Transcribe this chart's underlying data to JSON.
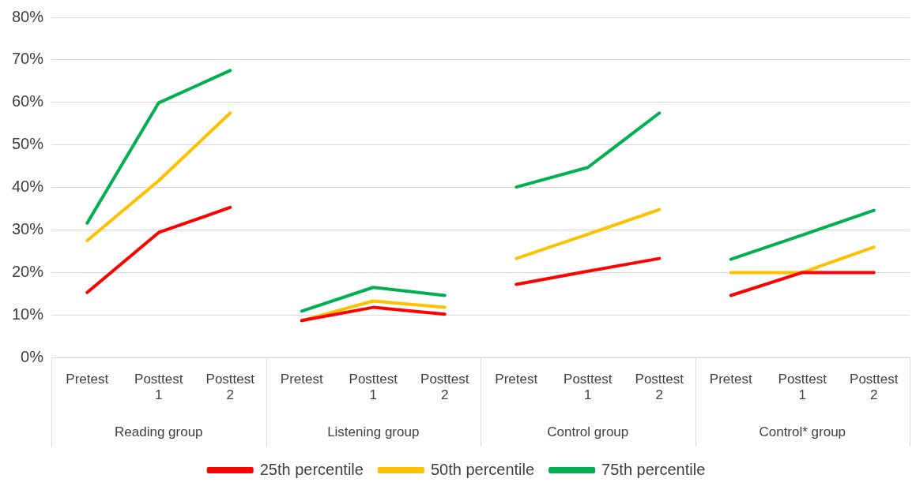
{
  "chart_data": {
    "type": "line",
    "categories": [
      "Pretest",
      "Posttest 1",
      "Posttest 2",
      "Pretest",
      "Posttest 1",
      "Posttest 2",
      "Pretest",
      "Posttest 1",
      "Posttest 2",
      "Pretest",
      "Posttest 1",
      "Posttest 2"
    ],
    "series": [
      {
        "name": "25th percentile",
        "color": "#ff0000",
        "values": [
          15.3,
          29.4,
          35.3,
          8.7,
          11.8,
          10.2,
          17.2,
          20.3,
          23.3,
          14.6,
          20,
          20
        ]
      },
      {
        "name": "50th percentile",
        "color": "#ffc000",
        "values": [
          27.5,
          41.6,
          57.5,
          8.7,
          13.3,
          11.8,
          23.3,
          29,
          34.8,
          20,
          20,
          26
        ]
      },
      {
        "name": "75th percentile",
        "color": "#00b050",
        "values": [
          31.6,
          59.9,
          67.5,
          10.9,
          16.5,
          14.6,
          40.1,
          44.7,
          57.5,
          23.1,
          28.8,
          34.6
        ]
      }
    ],
    "annotations": [
      "Reading group",
      "Listening group",
      "Control group",
      "Control* group"
    ],
    "ylim": [
      0,
      80
    ],
    "yticks": [
      {
        "value": 0,
        "label": "0%"
      },
      {
        "value": 10,
        "label": "10%"
      },
      {
        "value": 20,
        "label": "20%"
      },
      {
        "value": 30,
        "label": "30%"
      },
      {
        "value": 40,
        "label": "40%"
      },
      {
        "value": 50,
        "label": "50%"
      },
      {
        "value": 60,
        "label": "60%"
      },
      {
        "value": 70,
        "label": "70%"
      },
      {
        "value": 80,
        "label": "80%"
      }
    ],
    "grid": "y",
    "legend": "bottom",
    "marker": "none",
    "line_style": "solid"
  }
}
